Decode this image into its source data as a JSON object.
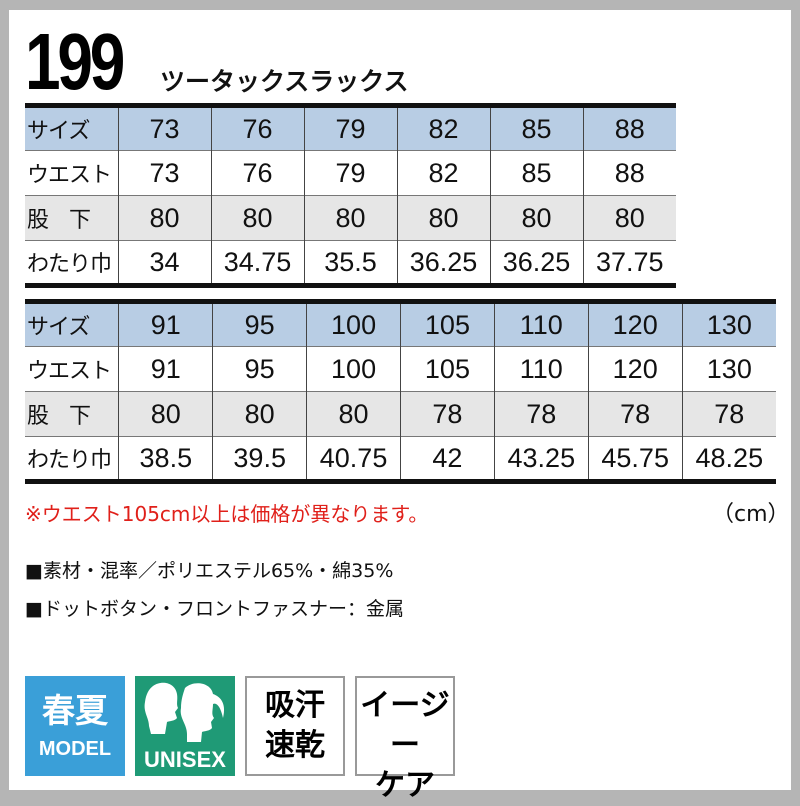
{
  "product": {
    "number": "199",
    "name": "ツータックスラックス"
  },
  "table1": {
    "rows": [
      {
        "label": "サイズ",
        "values": [
          "73",
          "76",
          "79",
          "82",
          "85",
          "88"
        ]
      },
      {
        "label": "ウエスト",
        "values": [
          "73",
          "76",
          "79",
          "82",
          "85",
          "88"
        ]
      },
      {
        "label": "股　下",
        "values": [
          "80",
          "80",
          "80",
          "80",
          "80",
          "80"
        ]
      },
      {
        "label": "わたり巾",
        "values": [
          "34",
          "34.75",
          "35.5",
          "36.25",
          "36.25",
          "37.75"
        ]
      }
    ]
  },
  "table2": {
    "rows": [
      {
        "label": "サイズ",
        "values": [
          "91",
          "95",
          "100",
          "105",
          "110",
          "120",
          "130"
        ]
      },
      {
        "label": "ウエスト",
        "values": [
          "91",
          "95",
          "100",
          "105",
          "110",
          "120",
          "130"
        ]
      },
      {
        "label": "股　下",
        "values": [
          "80",
          "80",
          "80",
          "78",
          "78",
          "78",
          "78"
        ]
      },
      {
        "label": "わたり巾",
        "values": [
          "38.5",
          "39.5",
          "40.75",
          "42",
          "43.25",
          "45.75",
          "48.25"
        ]
      }
    ]
  },
  "note": "※ウエスト105cm以上は価格が異なります。",
  "unit": "（cm）",
  "specs": [
    "■素材・混率／ポリエステル65%・綿35%",
    "■ドットボタン・フロントファスナー：金属"
  ],
  "badges": {
    "season": {
      "main": "春夏",
      "sub": "MODEL",
      "color": "#3a9fd8"
    },
    "unisex": {
      "sub": "UNISEX",
      "color": "#1f9a76"
    },
    "feature1": [
      "吸汗",
      "速乾"
    ],
    "feature2": [
      "イージー",
      "ケア"
    ]
  }
}
